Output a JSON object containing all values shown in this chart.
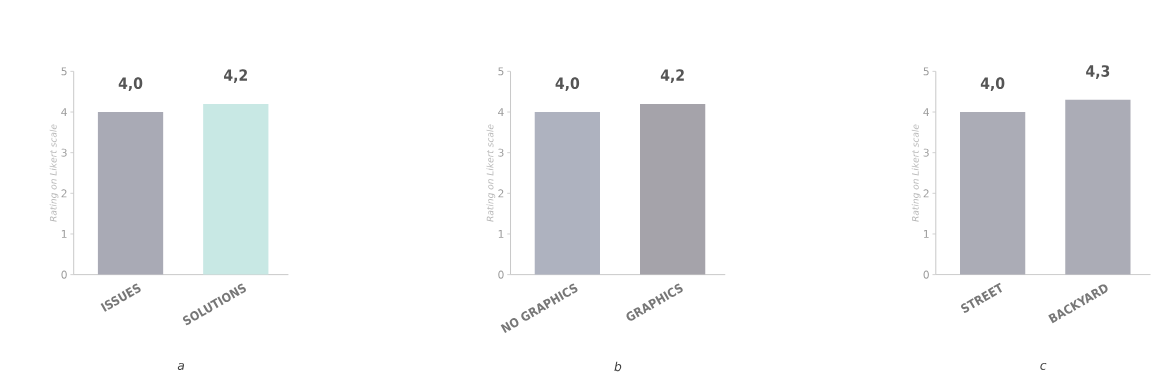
{
  "chart_data": [
    {
      "type": "bar",
      "categories": [
        "ISSUES",
        "SOLUTIONS"
      ],
      "values": [
        4.0,
        4.2
      ],
      "colors": [
        "#a9aab5",
        "#c8e8e4"
      ],
      "value_labels": [
        "4,0",
        "4,2"
      ],
      "ylabel": "Rating on Likert scale",
      "ylim": [
        0,
        5
      ],
      "yticks": [
        0,
        1,
        2,
        3,
        4,
        5
      ],
      "annotations": [
        "a"
      ]
    },
    {
      "type": "bar",
      "categories": [
        "NO GRAPHICS",
        "GRAPHICS"
      ],
      "values": [
        4.0,
        4.2
      ],
      "colors": [
        "#aeb2bf",
        "#a5a3aa"
      ],
      "value_labels": [
        "4,0",
        "4,2"
      ],
      "ylabel": "Rating on Likert scale",
      "ylim": [
        0,
        5
      ],
      "yticks": [
        0,
        1,
        2,
        3,
        4,
        5
      ],
      "annotations": [
        "b"
      ]
    },
    {
      "type": "bar",
      "categories": [
        "STREET",
        "BACKYARD"
      ],
      "values": [
        4.0,
        4.3
      ],
      "colors": [
        "#abacb6",
        "#abacb6"
      ],
      "value_labels": [
        "4,0",
        "4,3"
      ],
      "ylabel": "Rating on Likert scale",
      "ylim": [
        0,
        5
      ],
      "yticks": [
        0,
        1,
        2,
        3,
        4,
        5
      ],
      "annotations": [
        "c"
      ]
    }
  ]
}
